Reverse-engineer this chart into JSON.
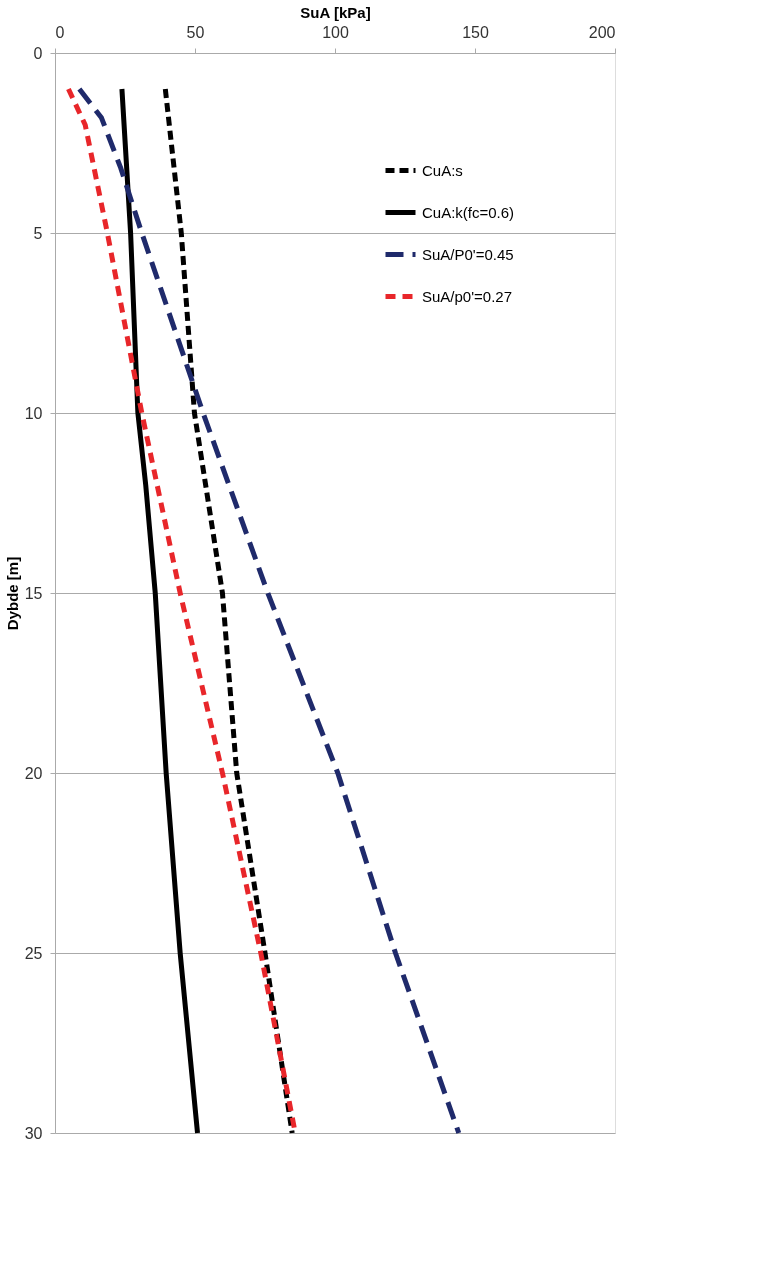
{
  "chart_data": {
    "type": "line",
    "xlabel": "SuA [kPa]",
    "ylabel": "Dybde [m]",
    "xlim": [
      0,
      200
    ],
    "xticks": [
      0,
      50,
      100,
      150,
      200
    ],
    "ylim": [
      30,
      0
    ],
    "yticks": [
      0,
      5,
      10,
      15,
      20,
      25,
      30
    ],
    "grid": "y",
    "legend": "top right",
    "marker": "none",
    "series": [
      {
        "name": "CuA:s",
        "color": "#000000",
        "line_style": "dashed",
        "x": [
          39.4,
          45.1,
          49.8,
          59.8,
          64.9,
          75,
          84.7
        ],
        "values": [
          1,
          5,
          10,
          15,
          20,
          25,
          30
        ]
      },
      {
        "name": "CuA:k(fc=0.6)",
        "color": "#000000",
        "line_style": "solid",
        "x": [
          23.9,
          27,
          29.6,
          32.4,
          35.8,
          39.7,
          44.7,
          50.9
        ],
        "values": [
          1,
          5,
          10,
          12,
          15,
          20,
          25,
          30
        ]
      },
      {
        "name": "SuA/P0'=0.45",
        "color": "#1f2a6b",
        "line_style": "dashed",
        "x": [
          8.7,
          16.6,
          23.5,
          31,
          52.9,
          76,
          101,
          121.6,
          144.2
        ],
        "values": [
          1,
          1.8,
          3.2,
          5,
          10,
          15,
          20,
          25,
          30
        ]
      },
      {
        "name": "SuA/p0'=0.27",
        "color": "#e8262a",
        "line_style": "dashed",
        "x": [
          4.8,
          10.8,
          18.7,
          31,
          44.7,
          59.8,
          73.5,
          85.8
        ],
        "values": [
          1,
          2,
          5,
          10,
          15,
          20,
          25,
          30
        ]
      }
    ]
  }
}
